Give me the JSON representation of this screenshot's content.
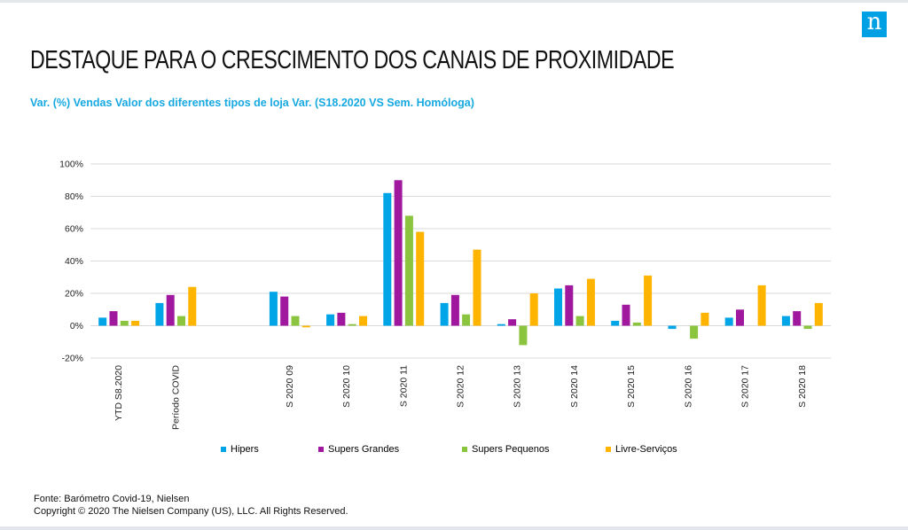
{
  "logo": {
    "letter": "n"
  },
  "title": "DESTAQUE PARA O CRESCIMENTO DOS CANAIS DE PROXIMIDADE",
  "subtitle": "Var. (%) Vendas Valor dos diferentes tipos de loja Var. (S18.2020 VS Sem. Homóloga)",
  "footer": {
    "source": "Fonte: Barómetro Covid-19, Nielsen",
    "copyright": "Copyright © 2020 The Nielsen Company (US), LLC. All Rights Reserved."
  },
  "colors": {
    "accent": "#16a9e1",
    "Hipers": "#00a5e8",
    "Supers Grandes": "#a0189e",
    "Supers Pequenos": "#8bc53f",
    "Livre-Serviços": "#ffb400",
    "grid": "#d9d9d9"
  },
  "chart_data": {
    "type": "bar",
    "categories": [
      "YTD S8.2020",
      "Período COVID",
      "",
      "S 2020 09",
      "S 2020 10",
      "S 2020 11",
      "S 2020 12",
      "S 2020 13",
      "S 2020 14",
      "S 2020 15",
      "S 2020 16",
      "S 2020 17",
      "S 2020 18"
    ],
    "series": [
      {
        "name": "Hipers",
        "values": [
          5,
          14,
          null,
          21,
          7,
          82,
          14,
          1,
          23,
          3,
          -2,
          5,
          6
        ]
      },
      {
        "name": "Supers Grandes",
        "values": [
          9,
          19,
          null,
          18,
          8,
          90,
          19,
          4,
          25,
          13,
          0,
          10,
          9
        ]
      },
      {
        "name": "Supers Pequenos",
        "values": [
          3,
          6,
          null,
          6,
          1,
          68,
          7,
          -12,
          6,
          2,
          -8,
          0,
          -2
        ]
      },
      {
        "name": "Livre-Serviços",
        "values": [
          3,
          24,
          null,
          -1,
          6,
          58,
          47,
          20,
          29,
          31,
          8,
          25,
          14
        ]
      }
    ],
    "yticks": [
      "100%",
      "80%",
      "60%",
      "40%",
      "20%",
      "0%",
      "-20%"
    ],
    "ylim": [
      -20,
      100
    ],
    "grid": true,
    "legend_position": "bottom"
  }
}
